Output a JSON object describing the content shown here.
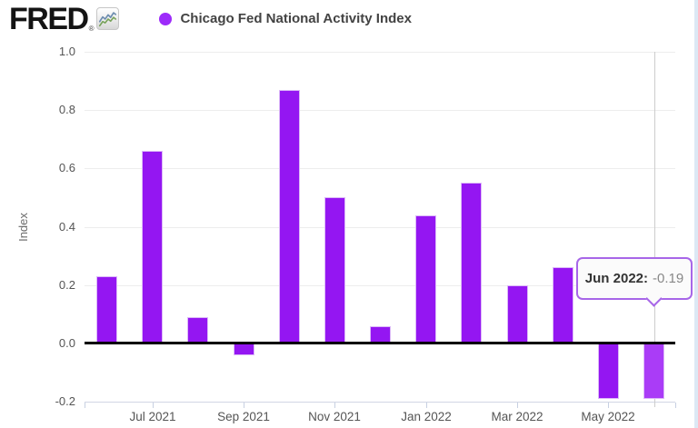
{
  "header": {
    "logo_text": "FRED",
    "registered_mark": "®",
    "legend": {
      "series_label": "Chicago Fed National Activity Index",
      "marker_color": "#9d2bfa"
    }
  },
  "chart_data": {
    "type": "bar",
    "title": "Chicago Fed National Activity Index",
    "xlabel": "",
    "ylabel": "Index",
    "ylim": [
      -0.2,
      1.0
    ],
    "y_ticks": [
      1.0,
      0.8,
      0.6,
      0.4,
      0.2,
      0.0,
      -0.2
    ],
    "grid": true,
    "legend_position": "top-left",
    "categories": [
      "Jun 2021",
      "Jul 2021",
      "Aug 2021",
      "Sep 2021",
      "Oct 2021",
      "Nov 2021",
      "Dec 2021",
      "Jan 2022",
      "Feb 2022",
      "Mar 2022",
      "Apr 2022",
      "May 2022",
      "Jun 2022"
    ],
    "values": [
      0.23,
      0.66,
      0.09,
      -0.04,
      0.87,
      0.5,
      0.06,
      0.44,
      0.55,
      0.2,
      0.26,
      -0.19,
      -0.19
    ],
    "x_tick_labels": [
      "Jul 2021",
      "Sep 2021",
      "Nov 2021",
      "Jan 2022",
      "Mar 2022",
      "May 2022"
    ],
    "x_tick_month_indices": [
      1,
      3,
      5,
      7,
      9,
      11
    ],
    "bar_color": "#9416f2",
    "bar_hover_color": "#aa3cf7",
    "highlighted_category": "Jun 2022",
    "highlighted_index": 12
  },
  "tooltip": {
    "date_label": "Jun 2022:",
    "value": "-0.19"
  }
}
